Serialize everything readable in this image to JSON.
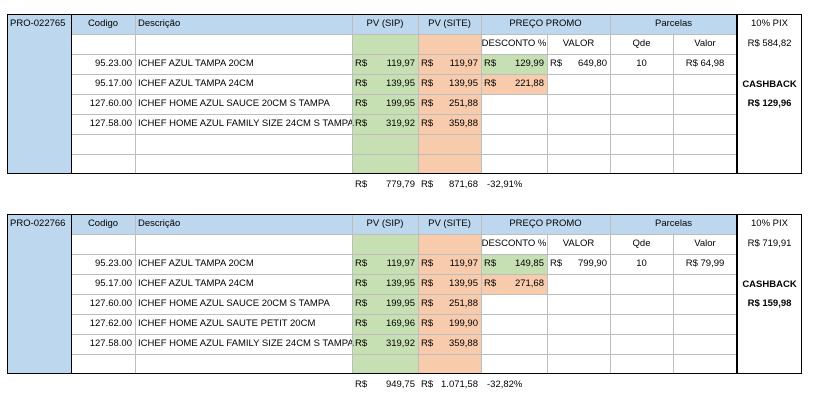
{
  "headers": {
    "codigo": "Codigo",
    "descricao": "Descrição",
    "pv_sip": "PV (SIP)",
    "pv_site": "PV (SITE)",
    "preco_promo": "PREÇO PROMO",
    "desconto": "DESCONTO %",
    "valor": "VALOR",
    "parcelas": "Parcelas",
    "qde": "Qde",
    "parcelas_valor": "Valor"
  },
  "blocks": [
    {
      "id": "PRO-022765",
      "pix_label": "10% PIX",
      "pix_value": "R$ 584,82",
      "cashback_label": "CASHBACK",
      "cashback_value": "R$ 129,96",
      "rows": [
        {
          "codigo": "95.23.00",
          "descricao": "ICHEF AZUL TAMPA 20CM",
          "sip_cur": "R$",
          "sip": "119,97",
          "site_cur": "R$",
          "site": "119,97",
          "promo_cur": "R$",
          "promo": "129,99",
          "valor_cur": "R$",
          "valor": "649,80",
          "qde": "10",
          "parc": "R$ 64,98"
        },
        {
          "codigo": "95.17.00",
          "descricao": "ICHEF AZUL TAMPA 24CM",
          "sip_cur": "R$",
          "sip": "139,95",
          "site_cur": "R$",
          "site": "139,95",
          "promo_cur": "R$",
          "promo": "221,88",
          "valor_cur": "",
          "valor": "",
          "qde": "",
          "parc": ""
        },
        {
          "codigo": "127.60.00",
          "descricao": "ICHEF HOME AZUL SAUCE 20CM S TAMPA",
          "sip_cur": "R$",
          "sip": "199,95",
          "site_cur": "R$",
          "site": "251,88",
          "promo_cur": "",
          "promo": "",
          "valor_cur": "",
          "valor": "",
          "qde": "",
          "parc": ""
        },
        {
          "codigo": "127.58.00",
          "descricao": "ICHEF HOME AZUL FAMILY SIZE 24CM S TAMPA",
          "sip_cur": "R$",
          "sip": "319,92",
          "site_cur": "R$",
          "site": "359,88",
          "promo_cur": "",
          "promo": "",
          "valor_cur": "",
          "valor": "",
          "qde": "",
          "parc": ""
        },
        {
          "codigo": "",
          "descricao": "",
          "sip_cur": "",
          "sip": "",
          "site_cur": "",
          "site": "",
          "promo_cur": "",
          "promo": "",
          "valor_cur": "",
          "valor": "",
          "qde": "",
          "parc": ""
        },
        {
          "codigo": "",
          "descricao": "",
          "sip_cur": "",
          "sip": "",
          "site_cur": "",
          "site": "",
          "promo_cur": "",
          "promo": "",
          "valor_cur": "",
          "valor": "",
          "qde": "",
          "parc": ""
        }
      ],
      "totals": {
        "sip_cur": "R$",
        "sip": "779,79",
        "site_cur": "R$",
        "site": "871,68",
        "pct": "-32,91%"
      }
    },
    {
      "id": "PRO-022766",
      "pix_label": "10% PIX",
      "pix_value": "R$ 719,91",
      "cashback_label": "CASHBACK",
      "cashback_value": "R$ 159,98",
      "rows": [
        {
          "codigo": "95.23.00",
          "descricao": "ICHEF AZUL TAMPA 20CM",
          "sip_cur": "R$",
          "sip": "119,97",
          "site_cur": "R$",
          "site": "119,97",
          "promo_cur": "R$",
          "promo": "149,85",
          "valor_cur": "R$",
          "valor": "799,90",
          "qde": "10",
          "parc": "R$ 79,99"
        },
        {
          "codigo": "95.17.00",
          "descricao": "ICHEF AZUL TAMPA 24CM",
          "sip_cur": "R$",
          "sip": "139,95",
          "site_cur": "R$",
          "site": "139,95",
          "promo_cur": "R$",
          "promo": "271,68",
          "valor_cur": "",
          "valor": "",
          "qde": "",
          "parc": ""
        },
        {
          "codigo": "127.60.00",
          "descricao": "ICHEF HOME AZUL SAUCE 20CM S TAMPA",
          "sip_cur": "R$",
          "sip": "199,95",
          "site_cur": "R$",
          "site": "251,88",
          "promo_cur": "",
          "promo": "",
          "valor_cur": "",
          "valor": "",
          "qde": "",
          "parc": ""
        },
        {
          "codigo": "127.62.00",
          "descricao": "ICHEF HOME AZUL SAUTE PETIT 20CM",
          "sip_cur": "R$",
          "sip": "169,96",
          "site_cur": "R$",
          "site": "199,90",
          "promo_cur": "",
          "promo": "",
          "valor_cur": "",
          "valor": "",
          "qde": "",
          "parc": ""
        },
        {
          "codigo": "127.58.00",
          "descricao": "ICHEF HOME AZUL FAMILY SIZE 24CM S TAMPA",
          "sip_cur": "R$",
          "sip": "319,92",
          "site_cur": "R$",
          "site": "359,88",
          "promo_cur": "",
          "promo": "",
          "valor_cur": "",
          "valor": "",
          "qde": "",
          "parc": ""
        },
        {
          "codigo": "",
          "descricao": "",
          "sip_cur": "",
          "sip": "",
          "site_cur": "",
          "site": "",
          "promo_cur": "",
          "promo": "",
          "valor_cur": "",
          "valor": "",
          "qde": "",
          "parc": ""
        }
      ],
      "totals": {
        "sip_cur": "R$",
        "sip": "949,75",
        "site_cur": "R$",
        "site": "1.071,58",
        "pct": "-32,82%"
      }
    }
  ]
}
